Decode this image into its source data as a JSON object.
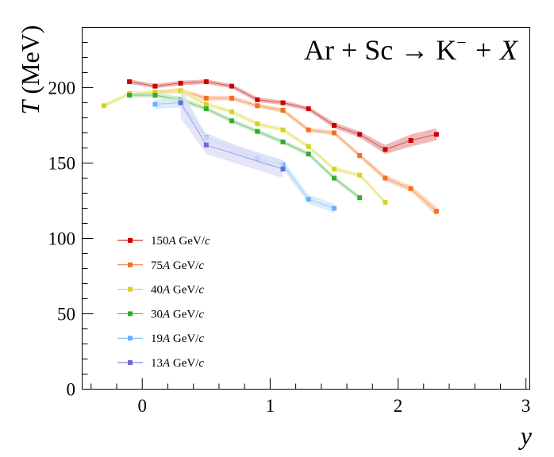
{
  "chart_data": {
    "type": "line",
    "title": "Ar + Sc → K⁻ + X",
    "title_parts": {
      "lhs": "Ar + Sc → K",
      "superscript": "−",
      "rhs": " + X"
    },
    "xlabel": "y",
    "ylabel": "T (MeV)",
    "ylabel_parts": {
      "symbol": "T",
      "unit": "(MeV)"
    },
    "xlim": [
      -0.47,
      3.03
    ],
    "ylim": [
      0,
      240
    ],
    "x_ticks": [
      0,
      1,
      2,
      3
    ],
    "x_tick_labels": [
      "0",
      "1",
      "2",
      "3"
    ],
    "y_ticks": [
      0,
      50,
      100,
      150,
      200
    ],
    "y_tick_labels": [
      "0",
      "50",
      "100",
      "150",
      "200"
    ],
    "grid": false,
    "legend_position": "lower-left",
    "series": [
      {
        "name": "150A GeV/c",
        "energy": "150",
        "unit": "A",
        "tail": " GeV/",
        "c": "c",
        "color": "#cc0000",
        "band_color": "#e8a2a2",
        "x": [
          -0.1,
          0.1,
          0.3,
          0.5,
          0.7,
          0.9,
          1.1,
          1.3,
          1.5,
          1.7,
          1.9,
          2.1,
          2.3
        ],
        "values": [
          204,
          201,
          203,
          204,
          201,
          192,
          190,
          186,
          175,
          169,
          159,
          165,
          169
        ],
        "band_halfwidth": [
          1.5,
          1.5,
          1.5,
          1.5,
          1.5,
          1.5,
          1.5,
          1.5,
          2,
          2,
          3,
          4,
          4
        ]
      },
      {
        "name": "75A GeV/c",
        "energy": "75",
        "unit": "A",
        "tail": " GeV/",
        "c": "c",
        "color": "#f37021",
        "band_color": "#fbc9a8",
        "x": [
          0.1,
          0.3,
          0.5,
          0.7,
          0.9,
          1.1,
          1.3,
          1.5,
          1.7,
          1.9,
          2.1,
          2.3
        ],
        "values": [
          197,
          198,
          193,
          193,
          188,
          185,
          172,
          170,
          155,
          140,
          133,
          118
        ],
        "band_halfwidth": [
          1.5,
          1.5,
          1.5,
          1.5,
          1.5,
          1.5,
          1.5,
          1.5,
          1.5,
          2,
          2,
          3
        ]
      },
      {
        "name": "40A GeV/c",
        "energy": "40",
        "unit": "A",
        "tail": " GeV/",
        "c": "c",
        "color": "#d4d420",
        "band_color": "#f0f0b4",
        "x": [
          -0.3,
          -0.1,
          0.1,
          0.3,
          0.5,
          0.7,
          0.9,
          1.1,
          1.3,
          1.5,
          1.7,
          1.9
        ],
        "values": [
          188,
          196,
          197,
          198,
          189,
          184,
          176,
          172,
          161,
          146,
          142,
          124
        ],
        "band_halfwidth": [
          1.5,
          1.5,
          1.5,
          2,
          1.5,
          1.5,
          1.5,
          1.5,
          1.5,
          1.5,
          1.5,
          1.5
        ]
      },
      {
        "name": "30A GeV/c",
        "energy": "30",
        "unit": "A",
        "tail": " GeV/",
        "c": "c",
        "color": "#33aa33",
        "band_color": "#bfe5bf",
        "x": [
          -0.1,
          0.1,
          0.3,
          0.5,
          0.7,
          0.9,
          1.1,
          1.3,
          1.5,
          1.7
        ],
        "values": [
          195,
          195,
          192,
          186,
          178,
          171,
          164,
          156,
          140,
          127
        ],
        "band_halfwidth": [
          1.5,
          1.5,
          2,
          1.5,
          1.5,
          1.5,
          1.5,
          1.5,
          1.5,
          1.5
        ]
      },
      {
        "name": "19A GeV/c",
        "energy": "19",
        "unit": "A",
        "tail": " GeV/",
        "c": "c",
        "color": "#66b2ff",
        "band_color": "#cfe6fc",
        "x": [
          0.1,
          0.3,
          0.5,
          0.9,
          1.1,
          1.3,
          1.5
        ],
        "values": [
          189,
          190,
          167,
          153,
          149,
          126,
          120
        ],
        "band_halfwidth": [
          3,
          3,
          3,
          3,
          3,
          3,
          3
        ]
      },
      {
        "name": "13A GeV/c",
        "energy": "13",
        "unit": "A",
        "tail": " GeV/",
        "c": "c",
        "color": "#6a6ad8",
        "band_color": "#dcdcf6",
        "x": [
          0.3,
          0.5,
          1.1
        ],
        "values": [
          190,
          162,
          146
        ],
        "band_halfwidth": [
          10,
          6,
          6
        ]
      }
    ]
  }
}
